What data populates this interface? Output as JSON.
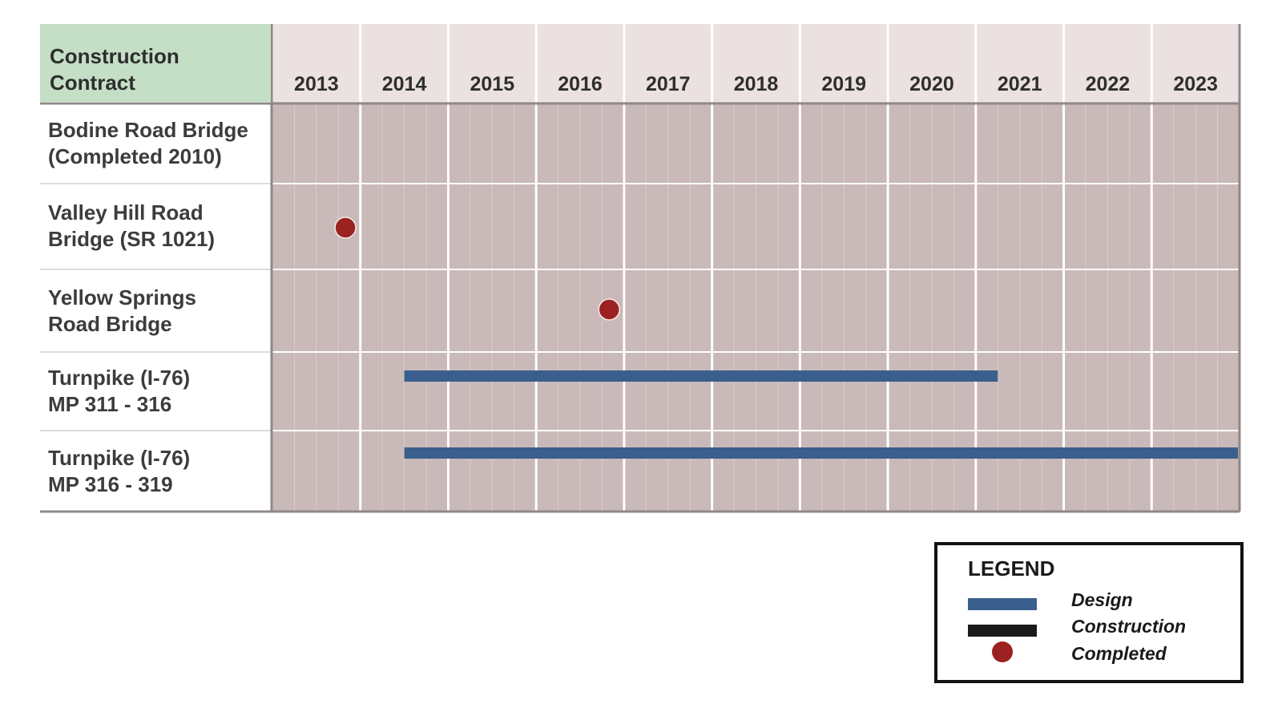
{
  "chart_data": {
    "type": "gantt",
    "header_label": [
      "Construction",
      "Contract"
    ],
    "years": [
      "2013",
      "2014",
      "2015",
      "2016",
      "2017",
      "2018",
      "2019",
      "2020",
      "2021",
      "2022",
      "2023"
    ],
    "rows": [
      {
        "label": [
          "Bodine Road Bridge",
          "(Completed 2010)"
        ],
        "bars": [],
        "milestones": []
      },
      {
        "label": [
          "Valley Hill Road",
          "Bridge (SR 1021)"
        ],
        "bars": [],
        "milestones": [
          {
            "type": "Completed",
            "date": 2013.83
          }
        ]
      },
      {
        "label": [
          "Yellow Springs",
          "Road Bridge"
        ],
        "bars": [],
        "milestones": [
          {
            "type": "Completed",
            "date": 2016.83
          }
        ]
      },
      {
        "label": [
          "Turnpike (I-76)",
          "MP 311 - 316"
        ],
        "bars": [
          {
            "type": "Design",
            "start": 2014.5,
            "end": 2021.25
          }
        ],
        "milestones": []
      },
      {
        "label": [
          "Turnpike (I-76)",
          "MP 316 - 319"
        ],
        "bars": [
          {
            "type": "Design",
            "start": 2014.5,
            "end": 2024.0
          }
        ],
        "milestones": []
      }
    ],
    "colors": {
      "header_left_bg": "#c5dfc6",
      "header_year_bg": "#ebe1e0",
      "grid_bg": "#c9b9b8",
      "grid_line_month": "#d9cdcc",
      "grid_line_year": "#ffffff",
      "design": "#3a5f8c",
      "construction": "#1a1a1a",
      "completed": "#9b2220"
    }
  },
  "legend": {
    "title": "LEGEND",
    "items": [
      {
        "label": "Design",
        "kind": "bar",
        "color": "#3a5f8c"
      },
      {
        "label": "Construction",
        "kind": "bar",
        "color": "#1a1a1a"
      },
      {
        "label": "Completed",
        "kind": "dot",
        "color": "#9b2220"
      }
    ]
  }
}
